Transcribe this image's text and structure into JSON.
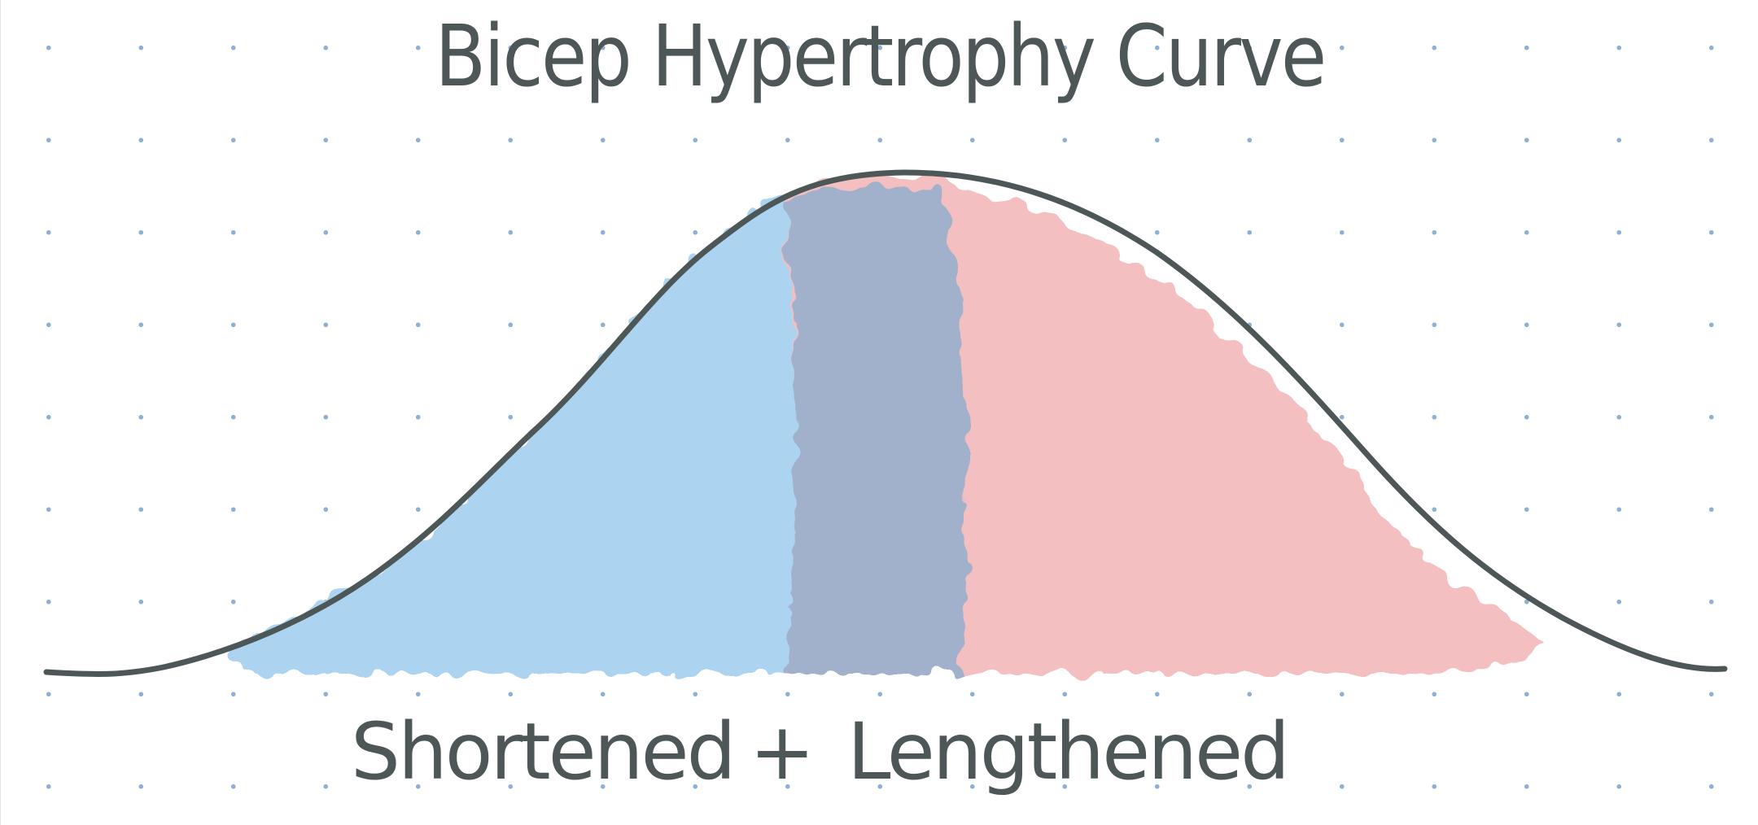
{
  "title": "Bicep Hypertrophy Curve",
  "labels": {
    "shortened": "Shortened",
    "plus": "+",
    "lengthened": "Lengthened"
  },
  "colors": {
    "ink": "#4e5757",
    "shortened_fill": "#acd3ef",
    "lengthened_fill": "#f4bfc0",
    "overlap_fill": "#a1b0cb",
    "grid_dot": "#8fb0d6"
  }
}
